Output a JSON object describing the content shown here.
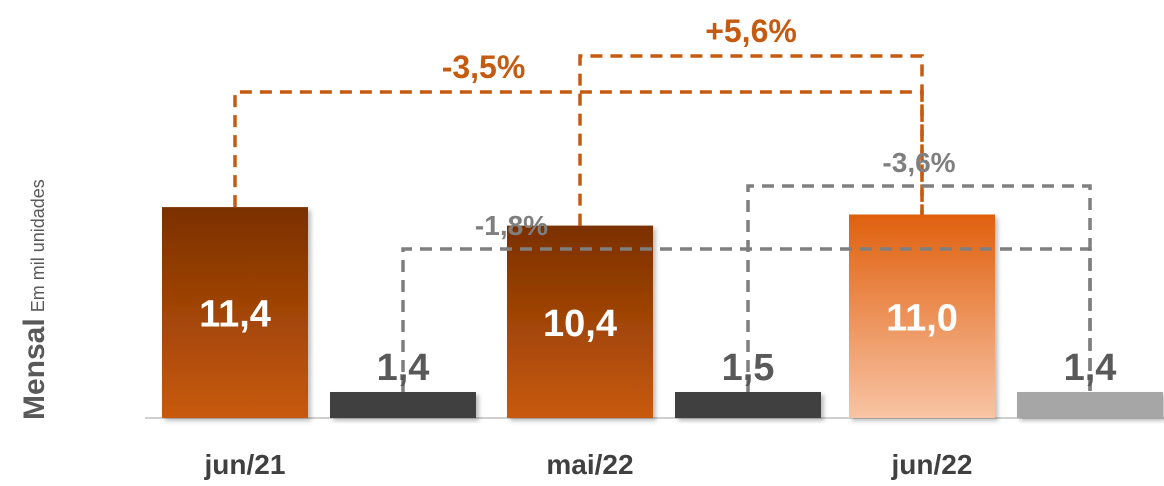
{
  "side_title": {
    "main": "Mensal",
    "sub": "Em mil unidades"
  },
  "chart_data": {
    "type": "bar",
    "categories": [
      "jun/21",
      "mai/22",
      "jun/22"
    ],
    "series": [
      {
        "values": [
          11.4,
          10.4,
          11.0
        ],
        "labels": [
          "11,4",
          "10,4",
          "11,0"
        ]
      },
      {
        "values": [
          1.4,
          1.5,
          1.4
        ],
        "labels": [
          "1,4",
          "1,5",
          "1,4"
        ]
      }
    ],
    "comparisons": [
      {
        "label": "-3,5%",
        "from": "jun/21",
        "to": "jun/22",
        "series_index": 0,
        "color": "#C55A11"
      },
      {
        "label": "+5,6%",
        "from": "mai/22",
        "to": "jun/22",
        "series_index": 0,
        "color": "#C55A11"
      },
      {
        "label": "-1,8%",
        "from": "jun/21",
        "to": "jun/22",
        "series_index": 1,
        "color": "#7F7F7F"
      },
      {
        "label": "-3,6%",
        "from": "mai/22",
        "to": "jun/22",
        "series_index": 1,
        "color": "#7F7F7F"
      }
    ],
    "colors": {
      "primary_dark_top": "#7B3000",
      "primary_dark_bottom": "#C85A0D",
      "primary_light_top": "#E0600E",
      "primary_light_bottom": "#F8C4A4",
      "secondary_dark": "#3F3F3F",
      "secondary_light": "#A6A6A6",
      "axis": "#D0D0D0",
      "category_text": "#404040",
      "value_text_dark": "#595959"
    }
  }
}
